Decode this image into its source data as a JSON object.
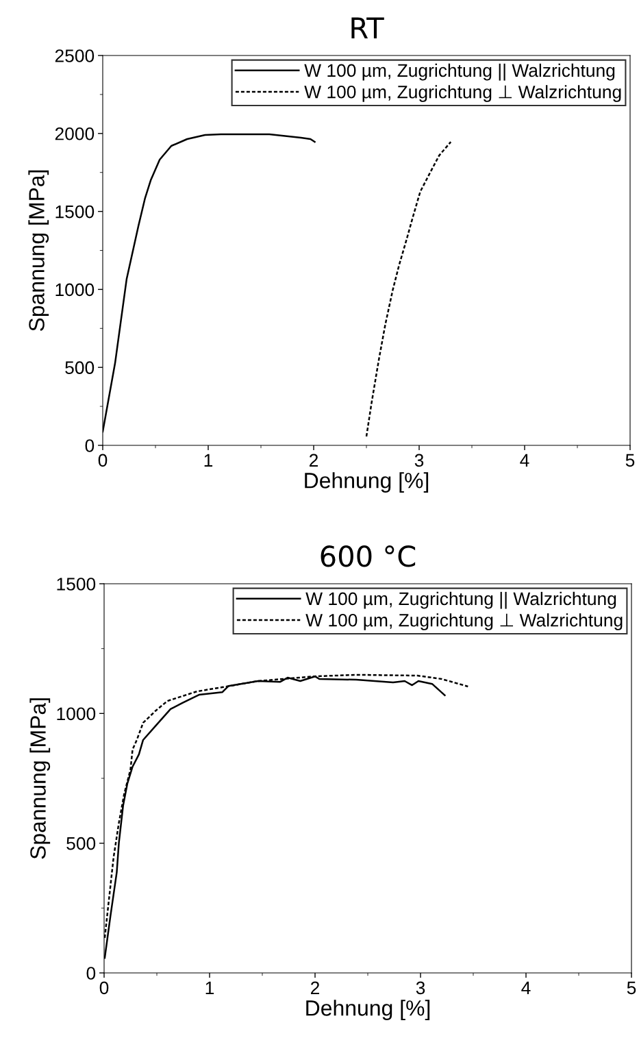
{
  "chart_data": [
    {
      "type": "line",
      "title": "RT",
      "xlabel": "Dehnung [%]",
      "ylabel": "Spannung [MPa]",
      "xlim": [
        0,
        5
      ],
      "xticks": [
        0,
        1,
        2,
        3,
        4,
        5
      ],
      "ylim": [
        0,
        2500
      ],
      "yticks": [
        0,
        500,
        1000,
        1500,
        2000,
        2500
      ],
      "grid": false,
      "legend": "top right",
      "series": [
        {
          "name": "W 100 µm, Zugrichtung || Walzrichtung",
          "color": "#000000",
          "line_style": "solid",
          "x": [
            0.0,
            0.117,
            0.227,
            0.338,
            0.4,
            0.455,
            0.54,
            0.65,
            0.8,
            0.97,
            1.12,
            1.58,
            1.88,
            1.97,
            2.01
          ],
          "values": [
            88,
            527,
            1068,
            1406,
            1582,
            1700,
            1832,
            1920,
            1964,
            1990,
            1995,
            1995,
            1973,
            1964,
            1946
          ]
        },
        {
          "name": "W 100 µm, Zugrichtung ⊥ Walzrichtung",
          "color": "#000000",
          "line_style": "dashed",
          "x": [
            2.5,
            2.55,
            2.62,
            2.68,
            2.75,
            2.81,
            2.88,
            2.94,
            3.01,
            3.1,
            3.19,
            3.3
          ],
          "values": [
            57,
            277,
            558,
            778,
            997,
            1156,
            1318,
            1463,
            1626,
            1744,
            1859,
            1946
          ]
        }
      ]
    },
    {
      "type": "line",
      "title": "600 °C",
      "xlabel": "Dehnung [%]",
      "ylabel": "Spannung [MPa]",
      "xlim": [
        0,
        5
      ],
      "xticks": [
        0,
        1,
        2,
        3,
        4,
        5
      ],
      "ylim": [
        0,
        1500
      ],
      "yticks": [
        0,
        500,
        1000,
        1500
      ],
      "grid": false,
      "legend": "top right",
      "series": [
        {
          "name": "W 100 µm, Zugrichtung || Walzrichtung",
          "color": "#000000",
          "line_style": "solid",
          "x": [
            0.006,
            0.06,
            0.12,
            0.14,
            0.18,
            0.22,
            0.27,
            0.33,
            0.37,
            0.49,
            0.63,
            0.74,
            0.9,
            1.12,
            1.18,
            1.46,
            1.67,
            1.74,
            1.86,
            2.0,
            2.04,
            2.39,
            2.74,
            2.85,
            2.92,
            2.98,
            3.11,
            3.23
          ],
          "values": [
            58,
            219,
            388,
            501,
            644,
            729,
            795,
            842,
            898,
            953,
            1017,
            1040,
            1072,
            1082,
            1106,
            1125,
            1122,
            1138,
            1125,
            1143,
            1133,
            1130,
            1120,
            1125,
            1109,
            1125,
            1114,
            1070
          ]
        },
        {
          "name": "W 100 µm, Zugrichtung ⊥ Walzrichtung",
          "color": "#000000",
          "line_style": "dashed",
          "x": [
            0.006,
            0.09,
            0.14,
            0.19,
            0.25,
            0.27,
            0.31,
            0.37,
            0.49,
            0.6,
            0.88,
            1.12,
            1.46,
            1.99,
            2.39,
            2.97,
            3.2,
            3.45
          ],
          "values": [
            135,
            446,
            578,
            689,
            784,
            861,
            898,
            964,
            1011,
            1048,
            1085,
            1101,
            1125,
            1143,
            1149,
            1146,
            1133,
            1104
          ]
        }
      ]
    }
  ]
}
